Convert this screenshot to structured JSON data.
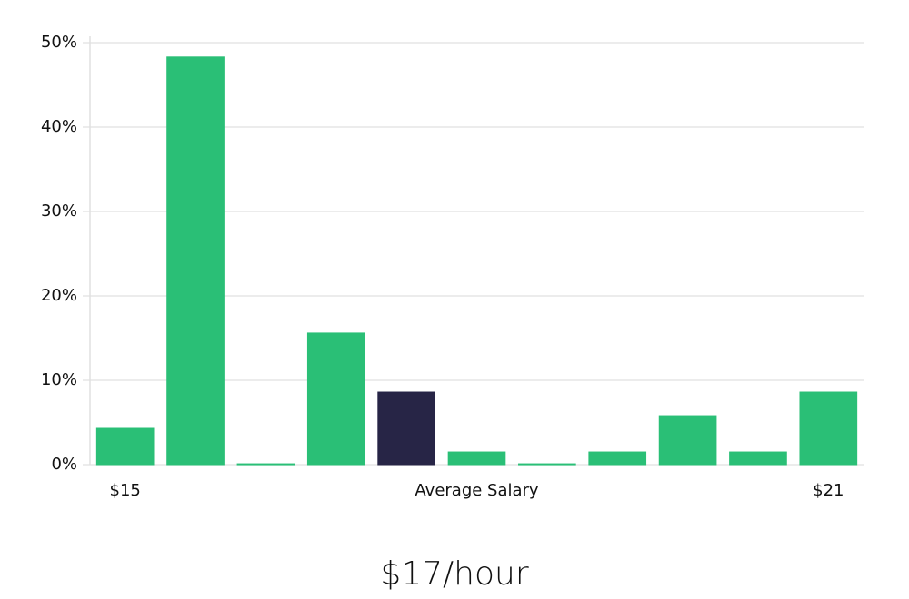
{
  "chart_data": {
    "type": "bar",
    "title": "$17/hour",
    "categories": [
      "$15",
      null,
      null,
      null,
      null,
      "Average Salary",
      null,
      null,
      null,
      null,
      "$21"
    ],
    "values": [
      4.3,
      48.3,
      0.1,
      15.6,
      8.6,
      1.5,
      0.1,
      1.5,
      5.8,
      1.5,
      8.6
    ],
    "colors": [
      "#2abf76",
      "#2abf76",
      "#2abf76",
      "#2abf76",
      "#272546",
      "#2abf76",
      "#2abf76",
      "#2abf76",
      "#2abf76",
      "#2abf76",
      "#2abf76"
    ],
    "ylim": [
      0,
      50
    ],
    "yticks": [
      {
        "value": 0,
        "label": "0%"
      },
      {
        "value": 10,
        "label": "10%"
      },
      {
        "value": 20,
        "label": "20%"
      },
      {
        "value": 30,
        "label": "30%"
      },
      {
        "value": 40,
        "label": "40%"
      },
      {
        "value": 50,
        "label": "50%"
      }
    ],
    "grid": true
  }
}
